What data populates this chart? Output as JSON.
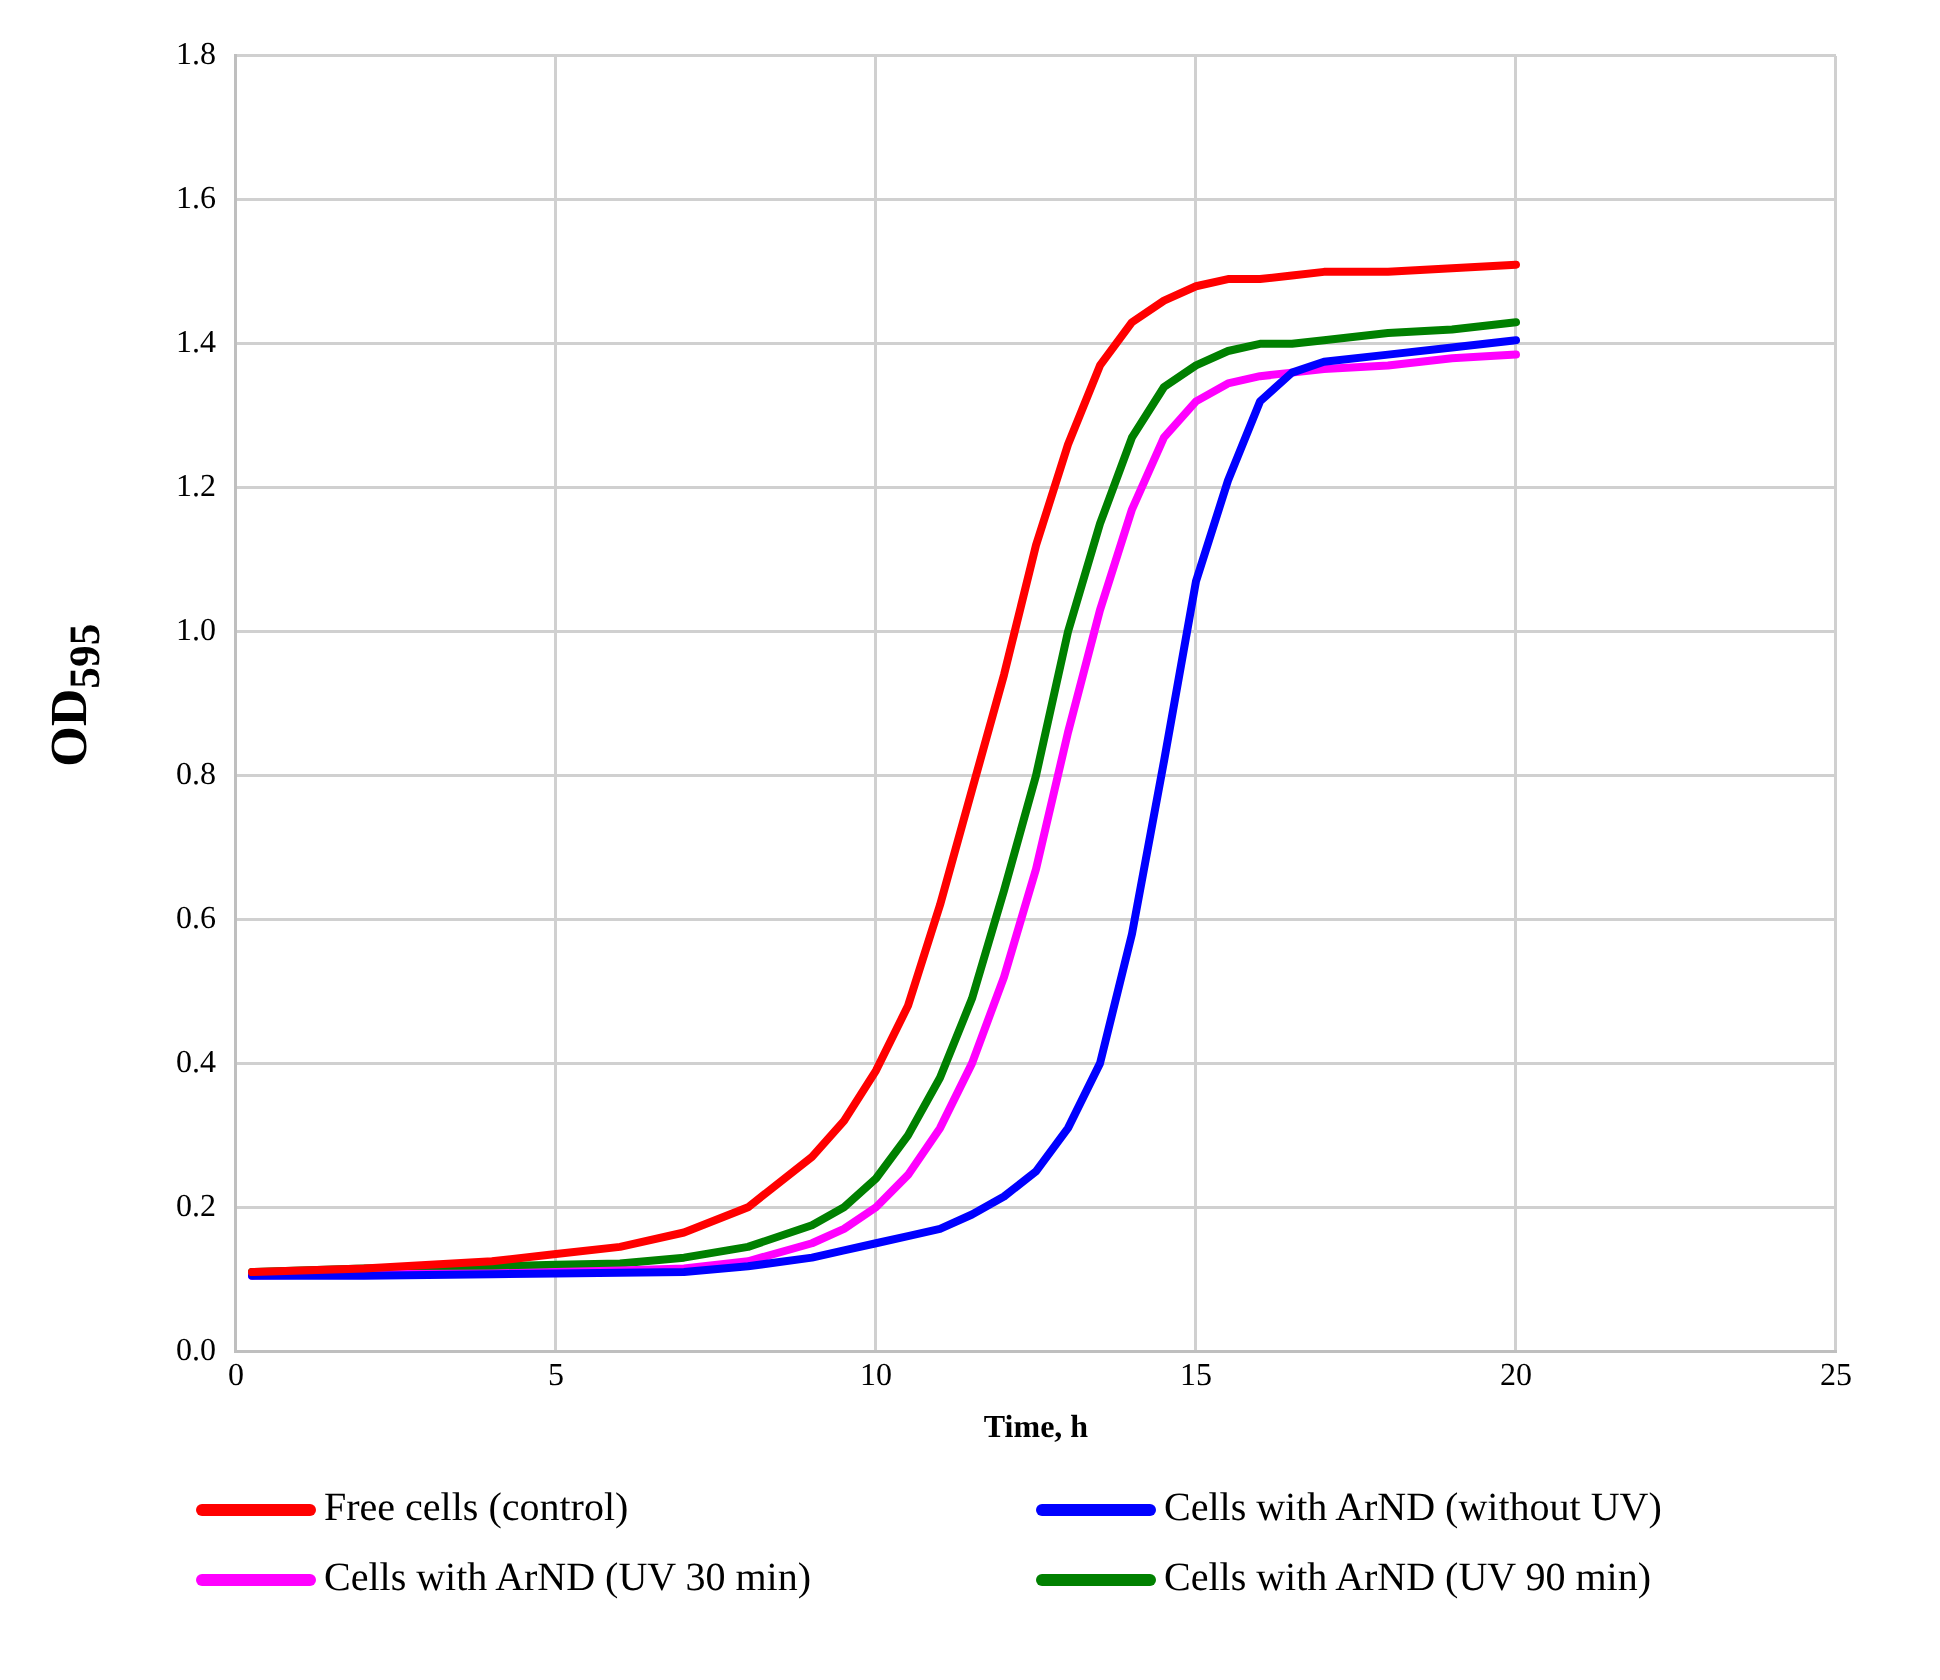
{
  "chart_data": {
    "type": "line",
    "xlabel": "Time, h",
    "ylabel": "OD$_{595}$",
    "x": [
      0.25,
      2,
      4,
      5,
      6,
      7,
      8,
      9,
      9.5,
      10,
      10.5,
      11,
      11.5,
      12,
      12.5,
      13,
      13.5,
      14,
      14.5,
      15,
      15.5,
      16,
      16.5,
      17,
      18,
      19,
      20
    ],
    "series": [
      {
        "name": "Free cells (control)",
        "color": "#ff0000",
        "values": [
          0.11,
          0.115,
          0.125,
          0.135,
          0.145,
          0.165,
          0.2,
          0.27,
          0.32,
          0.39,
          0.48,
          0.62,
          0.78,
          0.94,
          1.12,
          1.26,
          1.37,
          1.43,
          1.46,
          1.48,
          1.49,
          1.49,
          1.495,
          1.5,
          1.5,
          1.505,
          1.51
        ]
      },
      {
        "name": "Cells with ArND (without UV)",
        "color": "#0000ff",
        "values": [
          0.105,
          0.105,
          0.107,
          0.108,
          0.109,
          0.11,
          0.118,
          0.13,
          0.14,
          0.15,
          0.16,
          0.17,
          0.19,
          0.215,
          0.25,
          0.31,
          0.4,
          0.58,
          0.82,
          1.07,
          1.21,
          1.32,
          1.36,
          1.375,
          1.385,
          1.395,
          1.405
        ]
      },
      {
        "name": "Cells with ArND (UV 30 min)",
        "color": "#ff00ff",
        "values": [
          0.105,
          0.107,
          0.108,
          0.11,
          0.112,
          0.115,
          0.125,
          0.15,
          0.17,
          0.2,
          0.245,
          0.31,
          0.4,
          0.52,
          0.67,
          0.86,
          1.03,
          1.17,
          1.27,
          1.32,
          1.345,
          1.355,
          1.36,
          1.365,
          1.37,
          1.38,
          1.385
        ]
      },
      {
        "name": "Cells with ArND (UV 90 min)",
        "color": "#008000",
        "values": [
          0.11,
          0.115,
          0.118,
          0.12,
          0.122,
          0.13,
          0.145,
          0.175,
          0.2,
          0.24,
          0.3,
          0.38,
          0.49,
          0.64,
          0.8,
          1.0,
          1.15,
          1.27,
          1.34,
          1.37,
          1.39,
          1.4,
          1.4,
          1.405,
          1.415,
          1.42,
          1.43
        ]
      }
    ],
    "xlim": [
      0,
      25
    ],
    "xticks": [
      0,
      5,
      10,
      15,
      20,
      25
    ],
    "ylim": [
      0,
      1.8
    ],
    "yticks": [
      {
        "value": 0,
        "label": "0.0"
      },
      {
        "value": 0.2,
        "label": "0.2"
      },
      {
        "value": 0.4,
        "label": "0.4"
      },
      {
        "value": 0.6,
        "label": "0.6"
      },
      {
        "value": 0.8,
        "label": "0.8"
      },
      {
        "value": 1,
        "label": "1.0"
      },
      {
        "value": 1.2,
        "label": "1.2"
      },
      {
        "value": 1.4,
        "label": "1.4"
      },
      {
        "value": 1.6,
        "label": "1.6"
      },
      {
        "value": 1.8,
        "label": "1.8"
      }
    ],
    "grid": true,
    "legend": "bottom",
    "marker": "none",
    "line_style": "solid"
  }
}
